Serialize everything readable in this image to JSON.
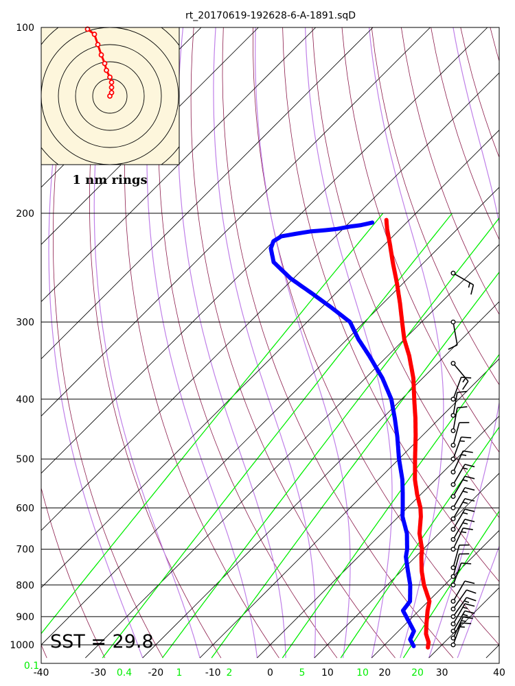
{
  "title": "rt_20170619-192628-6-A-1891.sqD",
  "sst_label": "SST = 29.8",
  "hodograph_label": "1 nm rings",
  "colors": {
    "temperature": "#ff0000",
    "dewpoint": "#0000ff",
    "mixing_ratio": "#00ee00",
    "dry_adiabat": "#8b1a4a",
    "moist_adiabat": "#bf7fe8",
    "isotherm": "#000000",
    "hodograph_bg": "#fdf6dc"
  },
  "chart_data": {
    "type": "skew-t log-p",
    "title": "rt_20170619-192628-6-A-1891.sqD",
    "pressure_ticks": [
      100,
      200,
      300,
      400,
      500,
      600,
      700,
      800,
      900,
      1000
    ],
    "temperature_ticks": [
      -40,
      -30,
      -20,
      -10,
      0,
      10,
      20,
      30,
      40
    ],
    "mixing_ratio_ticks": [
      {
        "label": "0.1",
        "value": 0.1
      },
      {
        "label": "0.4",
        "value": 0.4
      },
      {
        "label": "1",
        "value": 1
      },
      {
        "label": "2",
        "value": 2
      },
      {
        "label": "5",
        "value": 5
      },
      {
        "label": "10",
        "value": 10
      },
      {
        "label": "20",
        "value": 20
      }
    ],
    "ylim": [
      1000,
      100
    ],
    "xlim": [
      -40,
      40
    ],
    "pressure_scale": "log",
    "skew": "45 degrees",
    "temperature": [
      {
        "p": 1010,
        "t": 28.0
      },
      {
        "p": 990,
        "t": 27.2
      },
      {
        "p": 960,
        "t": 25.3
      },
      {
        "p": 920,
        "t": 23.4
      },
      {
        "p": 880,
        "t": 21.5
      },
      {
        "p": 850,
        "t": 20.2
      },
      {
        "p": 800,
        "t": 16.4
      },
      {
        "p": 760,
        "t": 13.6
      },
      {
        "p": 720,
        "t": 11.0
      },
      {
        "p": 700,
        "t": 9.8
      },
      {
        "p": 660,
        "t": 6.6
      },
      {
        "p": 620,
        "t": 3.9
      },
      {
        "p": 600,
        "t": 2.3
      },
      {
        "p": 570,
        "t": -0.7
      },
      {
        "p": 540,
        "t": -3.6
      },
      {
        "p": 500,
        "t": -7.2
      },
      {
        "p": 460,
        "t": -11.0
      },
      {
        "p": 430,
        "t": -14.2
      },
      {
        "p": 400,
        "t": -17.8
      },
      {
        "p": 370,
        "t": -21.6
      },
      {
        "p": 340,
        "t": -26.3
      },
      {
        "p": 320,
        "t": -30.0
      },
      {
        "p": 300,
        "t": -33.4
      },
      {
        "p": 280,
        "t": -37.0
      },
      {
        "p": 260,
        "t": -41.0
      },
      {
        "p": 240,
        "t": -45.5
      },
      {
        "p": 225,
        "t": -49.0
      },
      {
        "p": 212,
        "t": -52.3
      },
      {
        "p": 205,
        "t": -54.0
      }
    ],
    "dewpoint": [
      {
        "p": 1005,
        "t": 25.3
      },
      {
        "p": 980,
        "t": 23.5
      },
      {
        "p": 950,
        "t": 22.7
      },
      {
        "p": 920,
        "t": 20.4
      },
      {
        "p": 880,
        "t": 17.2
      },
      {
        "p": 850,
        "t": 16.8
      },
      {
        "p": 800,
        "t": 14.0
      },
      {
        "p": 760,
        "t": 11.2
      },
      {
        "p": 720,
        "t": 8.3
      },
      {
        "p": 700,
        "t": 7.2
      },
      {
        "p": 660,
        "t": 4.4
      },
      {
        "p": 620,
        "t": 0.7
      },
      {
        "p": 600,
        "t": -0.8
      },
      {
        "p": 570,
        "t": -3.2
      },
      {
        "p": 540,
        "t": -5.8
      },
      {
        "p": 500,
        "t": -10.0
      },
      {
        "p": 460,
        "t": -14.2
      },
      {
        "p": 430,
        "t": -17.8
      },
      {
        "p": 400,
        "t": -21.8
      },
      {
        "p": 370,
        "t": -27.0
      },
      {
        "p": 340,
        "t": -33.3
      },
      {
        "p": 320,
        "t": -38.0
      },
      {
        "p": 300,
        "t": -42.5
      },
      {
        "p": 285,
        "t": -48.0
      },
      {
        "p": 270,
        "t": -54.0
      },
      {
        "p": 255,
        "t": -60.5
      },
      {
        "p": 240,
        "t": -66.3
      },
      {
        "p": 228,
        "t": -69.2
      },
      {
        "p": 222,
        "t": -70.0
      },
      {
        "p": 218,
        "t": -69.5
      },
      {
        "p": 216,
        "t": -67.5
      },
      {
        "p": 214,
        "t": -65.3
      },
      {
        "p": 213,
        "t": -62.8
      },
      {
        "p": 212,
        "t": -61.0
      },
      {
        "p": 210,
        "t": -59.0
      },
      {
        "p": 209,
        "t": -57.5
      },
      {
        "p": 207,
        "t": -56.0
      }
    ],
    "wind_barbs": [
      {
        "p": 1000,
        "direction_deg": 20,
        "speed_kt": 15
      },
      {
        "p": 975,
        "direction_deg": 25,
        "speed_kt": 15
      },
      {
        "p": 950,
        "direction_deg": 30,
        "speed_kt": 15
      },
      {
        "p": 925,
        "direction_deg": 30,
        "speed_kt": 15
      },
      {
        "p": 900,
        "direction_deg": 35,
        "speed_kt": 15
      },
      {
        "p": 875,
        "direction_deg": 35,
        "speed_kt": 10
      },
      {
        "p": 850,
        "direction_deg": 30,
        "speed_kt": 10
      },
      {
        "p": 800,
        "direction_deg": 20,
        "speed_kt": 10
      },
      {
        "p": 775,
        "direction_deg": 15,
        "speed_kt": 10
      },
      {
        "p": 750,
        "direction_deg": 15,
        "speed_kt": 10
      },
      {
        "p": 700,
        "direction_deg": 25,
        "speed_kt": 15
      },
      {
        "p": 675,
        "direction_deg": 30,
        "speed_kt": 15
      },
      {
        "p": 650,
        "direction_deg": 30,
        "speed_kt": 15
      },
      {
        "p": 625,
        "direction_deg": 30,
        "speed_kt": 15
      },
      {
        "p": 600,
        "direction_deg": 30,
        "speed_kt": 15
      },
      {
        "p": 575,
        "direction_deg": 30,
        "speed_kt": 15
      },
      {
        "p": 550,
        "direction_deg": 30,
        "speed_kt": 15
      },
      {
        "p": 525,
        "direction_deg": 25,
        "speed_kt": 15
      },
      {
        "p": 500,
        "direction_deg": 20,
        "speed_kt": 15
      },
      {
        "p": 475,
        "direction_deg": 15,
        "speed_kt": 10
      },
      {
        "p": 450,
        "direction_deg": 10,
        "speed_kt": 10
      },
      {
        "p": 425,
        "direction_deg": 10,
        "speed_kt": 10
      },
      {
        "p": 400,
        "direction_deg": 20,
        "speed_kt": 10
      },
      {
        "p": 350,
        "direction_deg": 140,
        "speed_kt": 15
      },
      {
        "p": 300,
        "direction_deg": 170,
        "speed_kt": 10
      },
      {
        "p": 250,
        "direction_deg": 120,
        "speed_kt": 15
      }
    ],
    "hodograph": {
      "ring_spacing": "1 nm",
      "rings": 5,
      "points_nm": [
        {
          "x": 0.0,
          "y": 0.0
        },
        {
          "x": 0.1,
          "y": 0.2
        },
        {
          "x": 0.1,
          "y": 0.5
        },
        {
          "x": 0.1,
          "y": 0.8
        },
        {
          "x": 0.0,
          "y": 1.1
        },
        {
          "x": -0.2,
          "y": 1.5
        },
        {
          "x": -0.3,
          "y": 1.9
        },
        {
          "x": -0.5,
          "y": 2.4
        },
        {
          "x": -0.7,
          "y": 3.0
        },
        {
          "x": -0.9,
          "y": 3.6
        },
        {
          "x": -1.3,
          "y": 3.9
        }
      ]
    }
  }
}
